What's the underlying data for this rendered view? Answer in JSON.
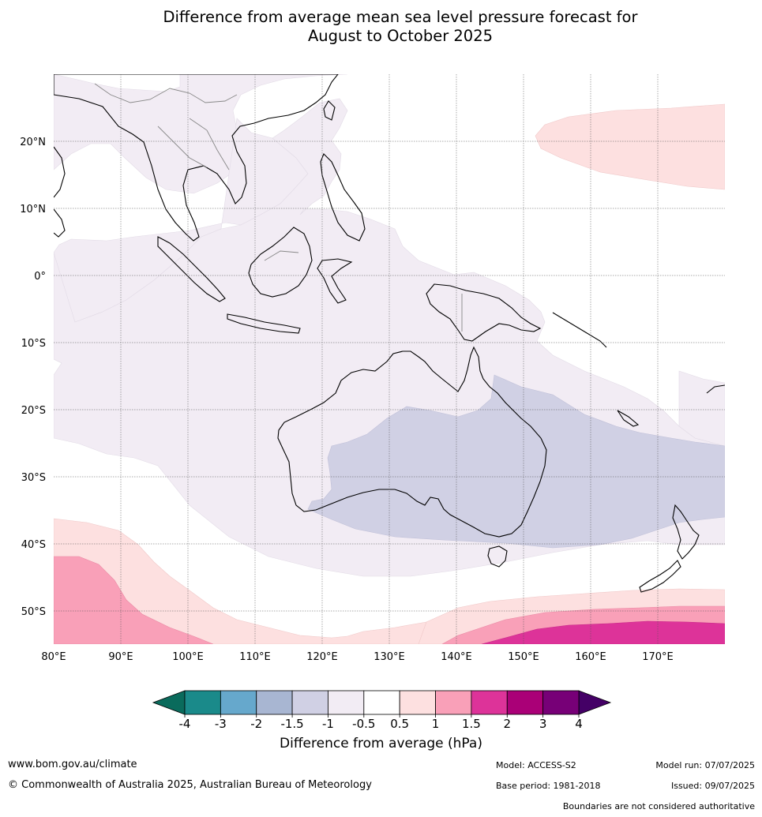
{
  "title": {
    "line1": "Difference from average mean sea level pressure forecast for",
    "line2": "August to October 2025"
  },
  "map": {
    "lat_labels": [
      "20°N",
      "10°N",
      "0°",
      "10°S",
      "20°S",
      "30°S",
      "40°S",
      "50°S"
    ],
    "lon_labels": [
      "80°E",
      "90°E",
      "100°E",
      "110°E",
      "120°E",
      "130°E",
      "140°E",
      "150°E",
      "160°E",
      "170°E"
    ]
  },
  "colorbar": {
    "ticks": [
      "-4",
      "-3",
      "-2",
      "-1.5",
      "-1",
      "-0.5",
      "0.5",
      "1",
      "1.5",
      "2",
      "3",
      "4"
    ],
    "colors": [
      "#1a8a8a",
      "#66a8cc",
      "#a8b6d2",
      "#d0d0e4",
      "#f2ecf4",
      "#ffffff",
      "#fde0e0",
      "#f9a0b8",
      "#dd3399",
      "#aa0077",
      "#770077"
    ],
    "under_color": "#0a6b5c",
    "over_color": "#440066",
    "label": "Difference from average (hPa)"
  },
  "footer": {
    "url": "www.bom.gov.au/climate",
    "copyright": "© Commonwealth of Australia 2025, Australian Bureau of Meteorology",
    "model": "Model: ACCESS-S2",
    "base_period": "Base period: 1981-2018",
    "model_run": "Model run: 07/07/2025",
    "issued": "Issued: 09/07/2025",
    "boundaries": "Boundaries are not considered authoritative"
  }
}
